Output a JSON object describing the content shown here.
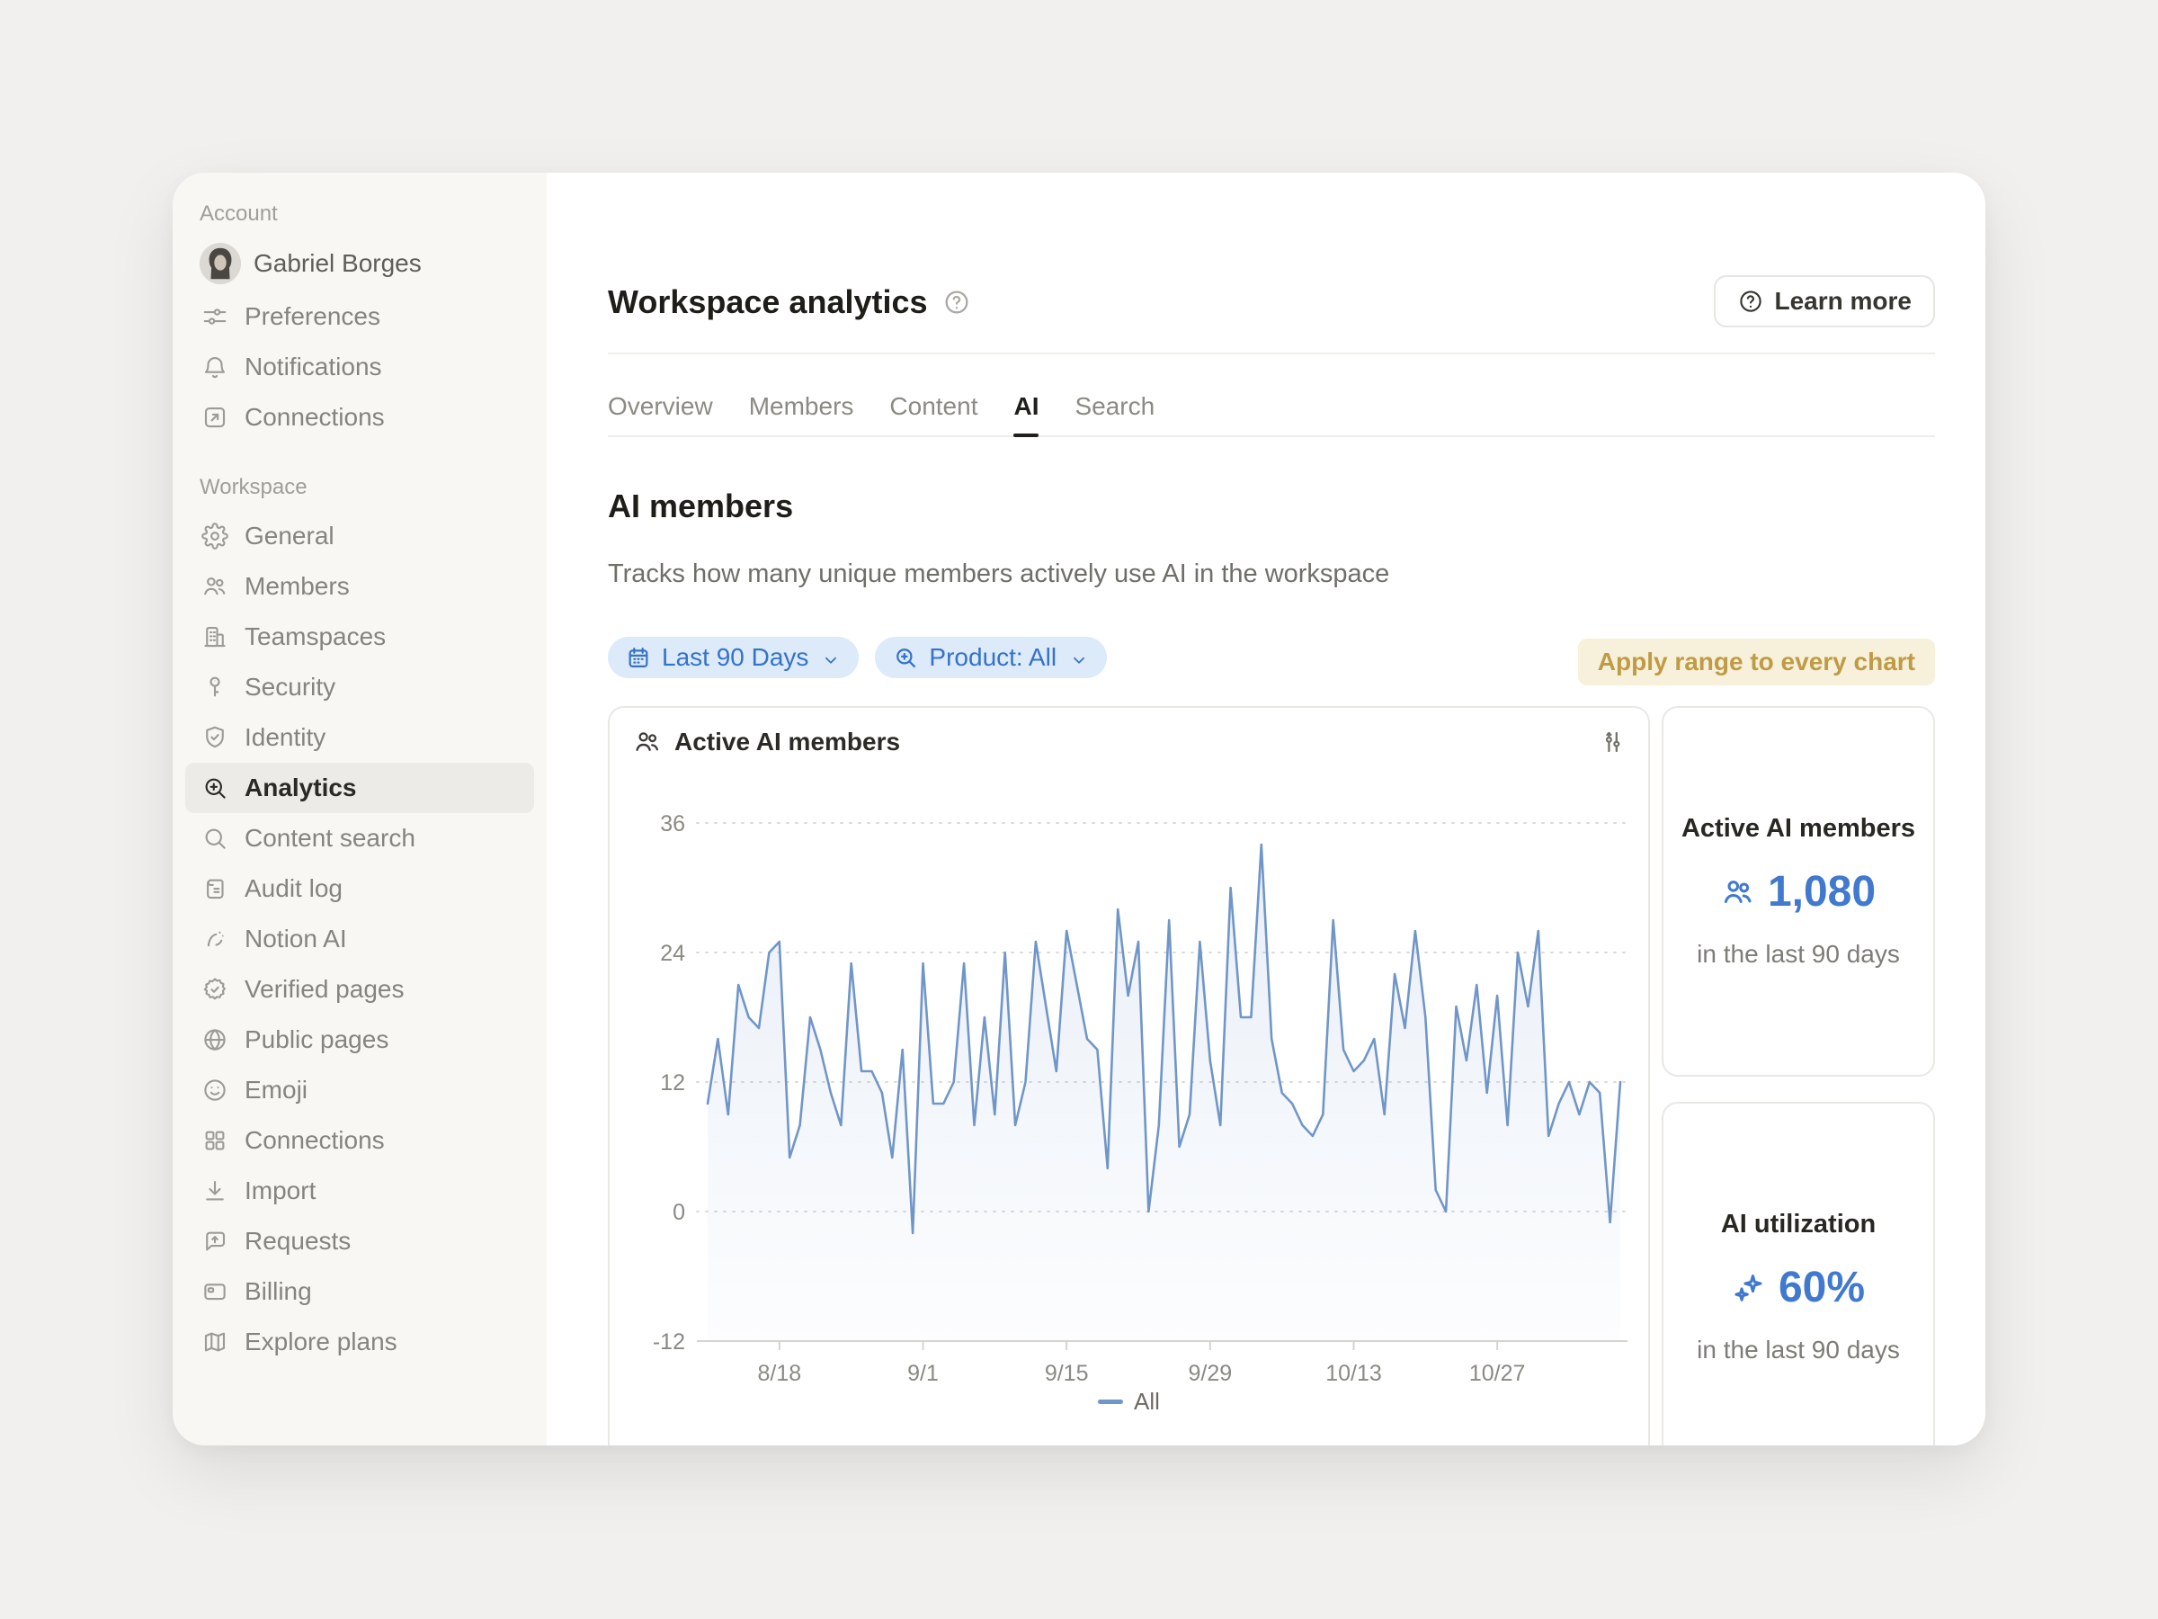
{
  "window": {
    "background": "#F2F0EE",
    "surface": "#FFFFFF"
  },
  "sidebar": {
    "sections": [
      {
        "label": "Account",
        "items": [
          {
            "label": "Gabriel Borges",
            "icon": "avatar"
          },
          {
            "label": "Preferences",
            "icon": "sliders-horizontal"
          },
          {
            "label": "Notifications",
            "icon": "bell"
          },
          {
            "label": "Connections",
            "icon": "external-link-box"
          }
        ]
      },
      {
        "label": "Workspace",
        "items": [
          {
            "label": "General",
            "icon": "gear"
          },
          {
            "label": "Members",
            "icon": "people"
          },
          {
            "label": "Teamspaces",
            "icon": "building"
          },
          {
            "label": "Security",
            "icon": "key"
          },
          {
            "label": "Identity",
            "icon": "shield-check"
          },
          {
            "label": "Analytics",
            "icon": "zoom-in",
            "active": true
          },
          {
            "label": "Content search",
            "icon": "search"
          },
          {
            "label": "Audit log",
            "icon": "scroll"
          },
          {
            "label": "Notion AI",
            "icon": "ai-face"
          },
          {
            "label": "Verified pages",
            "icon": "badge-check"
          },
          {
            "label": "Public pages",
            "icon": "globe"
          },
          {
            "label": "Emoji",
            "icon": "smiley"
          },
          {
            "label": "Connections",
            "icon": "grid"
          },
          {
            "label": "Import",
            "icon": "download"
          },
          {
            "label": "Requests",
            "icon": "message-up-arrow"
          },
          {
            "label": "Billing",
            "icon": "credit-card"
          },
          {
            "label": "Explore plans",
            "icon": "map"
          }
        ]
      }
    ]
  },
  "header": {
    "title": "Workspace analytics",
    "learn_more_label": "Learn more"
  },
  "tabs": {
    "active": "AI",
    "items": [
      {
        "label": "Overview"
      },
      {
        "label": "Members"
      },
      {
        "label": "Content"
      },
      {
        "label": "AI"
      },
      {
        "label": "Search"
      }
    ]
  },
  "section": {
    "title": "AI members",
    "description": "Tracks how many unique members actively use AI in the workspace"
  },
  "filters": {
    "date_range": "Last 90 Days",
    "product": "Product: All",
    "apply_note": "Apply range to every chart"
  },
  "chart_card": {
    "title": "Active AI members"
  },
  "chart_data": {
    "type": "line",
    "title": "Active AI members",
    "series": [
      {
        "name": "All",
        "values": [
          10,
          16,
          9,
          21,
          18,
          17,
          24,
          25,
          5,
          8,
          18,
          15,
          11,
          8,
          23,
          13,
          13,
          11,
          5,
          15,
          -2,
          23,
          10,
          10,
          12,
          23,
          8,
          18,
          9,
          24,
          8,
          12,
          25,
          19,
          13,
          26,
          21,
          16,
          15,
          4,
          28,
          20,
          25,
          0,
          8,
          27,
          6,
          9,
          25,
          14,
          8,
          30,
          18,
          18,
          34,
          16,
          11,
          10,
          8,
          7,
          9,
          27,
          15,
          13,
          14,
          16,
          9,
          22,
          17,
          26,
          18,
          2,
          0,
          19,
          14,
          21,
          11,
          20,
          8,
          24,
          19,
          26,
          7,
          10,
          12,
          9,
          12,
          11,
          -1,
          12
        ]
      }
    ],
    "x_ticks": [
      {
        "label": "8/18",
        "index": 7
      },
      {
        "label": "9/1",
        "index": 21
      },
      {
        "label": "9/15",
        "index": 35
      },
      {
        "label": "9/29",
        "index": 49
      },
      {
        "label": "10/13",
        "index": 63
      },
      {
        "label": "10/27",
        "index": 77
      }
    ],
    "y_ticks": [
      36,
      24,
      12,
      0,
      -12
    ],
    "ylim": [
      -12,
      36
    ],
    "grid": "dotted-horizontal",
    "legend_position": "bottom",
    "line_color": "#7096C8",
    "area_fill": "#E9F1FA"
  },
  "stat_cards": [
    {
      "title": "Active AI members",
      "value": "1,080",
      "subtitle": "in the last 90 days",
      "icon": "people"
    },
    {
      "title": "AI utilization",
      "value": "60%",
      "subtitle": "in the last 90 days",
      "icon": "sparkles"
    }
  ],
  "colors": {
    "accent_blue": "#4079CE",
    "chart_line": "#7096C8",
    "filter_text": "#3473C9",
    "filter_bg": "#DCEAF9",
    "apply_text": "#BF9B45",
    "apply_bg": "#F7F0DA"
  }
}
